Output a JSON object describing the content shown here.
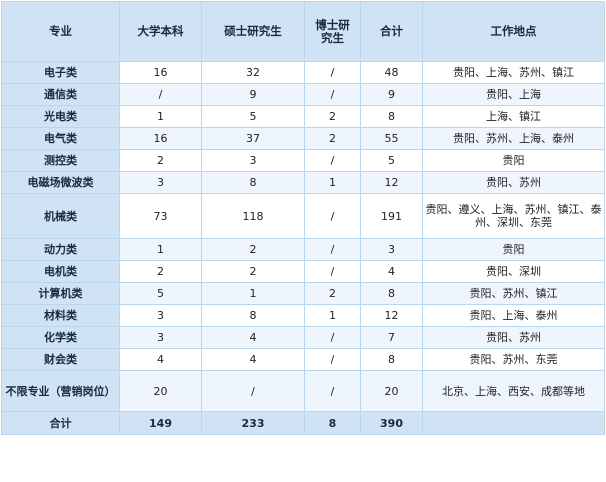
{
  "headers": [
    "专业",
    "大学本科",
    "硕士研究生",
    "博士研究生",
    "合计",
    "工作地点"
  ],
  "rows": [
    {
      "major": "电子类",
      "bachelor": "16",
      "master": "32",
      "phd": "/",
      "total": "48",
      "location": "贵阳、上海、苏州、镇江"
    },
    {
      "major": "通信类",
      "bachelor": "/",
      "master": "9",
      "phd": "/",
      "total": "9",
      "location": "贵阳、上海"
    },
    {
      "major": "光电类",
      "bachelor": "1",
      "master": "5",
      "phd": "2",
      "total": "8",
      "location": "上海、镇江"
    },
    {
      "major": "电气类",
      "bachelor": "16",
      "master": "37",
      "phd": "2",
      "total": "55",
      "location": "贵阳、苏州、上海、泰州"
    },
    {
      "major": "测控类",
      "bachelor": "2",
      "master": "3",
      "phd": "/",
      "total": "5",
      "location": "贵阳"
    },
    {
      "major": "电磁场微波类",
      "bachelor": "3",
      "master": "8",
      "phd": "1",
      "total": "12",
      "location": "贵阳、苏州"
    },
    {
      "major": "机械类",
      "bachelor": "73",
      "master": "118",
      "phd": "/",
      "total": "191",
      "location": "贵阳、遵义、上海、苏州、镇江、泰州、深圳、东莞"
    },
    {
      "major": "动力类",
      "bachelor": "1",
      "master": "2",
      "phd": "/",
      "total": "3",
      "location": "贵阳"
    },
    {
      "major": "电机类",
      "bachelor": "2",
      "master": "2",
      "phd": "/",
      "total": "4",
      "location": "贵阳、深圳"
    },
    {
      "major": "计算机类",
      "bachelor": "5",
      "master": "1",
      "phd": "2",
      "total": "8",
      "location": "贵阳、苏州、镇江"
    },
    {
      "major": "材料类",
      "bachelor": "3",
      "master": "8",
      "phd": "1",
      "total": "12",
      "location": "贵阳、上海、泰州"
    },
    {
      "major": "化学类",
      "bachelor": "3",
      "master": "4",
      "phd": "/",
      "total": "7",
      "location": "贵阳、苏州"
    },
    {
      "major": "财会类",
      "bachelor": "4",
      "master": "4",
      "phd": "/",
      "total": "8",
      "location": "贵阳、苏州、东莞"
    },
    {
      "major": "不限专业（营销岗位）",
      "bachelor": "20",
      "master": "/",
      "phd": "/",
      "total": "20",
      "location": "北京、上海、西安、成都等地"
    }
  ],
  "totals": {
    "label": "合计",
    "bachelor": "149",
    "master": "233",
    "phd": "8",
    "total": "390",
    "location": ""
  }
}
